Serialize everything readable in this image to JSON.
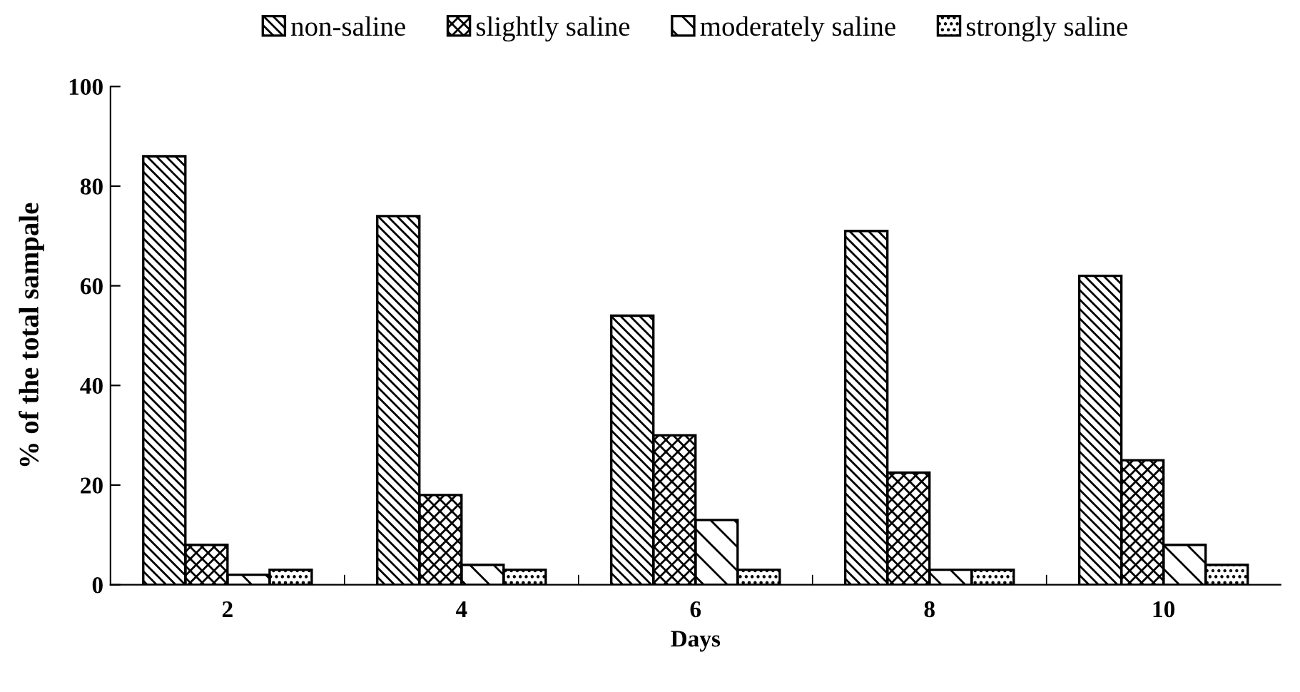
{
  "chart_data": {
    "type": "bar",
    "xlabel": "Days",
    "ylabel": "% of the total sampale",
    "categories": [
      "2",
      "4",
      "6",
      "8",
      "10"
    ],
    "series": [
      {
        "name": "non-saline",
        "color": "#000000",
        "values": [
          86,
          74,
          54,
          71,
          62
        ]
      },
      {
        "name": "slightly saline",
        "color": "#000000",
        "values": [
          8,
          18,
          30,
          22.5,
          25
        ]
      },
      {
        "name": "moderately saline",
        "color": "#000000",
        "values": [
          2,
          4,
          13,
          3,
          8
        ]
      },
      {
        "name": "strongly saline",
        "color": "#000000",
        "values": [
          3,
          3,
          3,
          3,
          4
        ]
      }
    ],
    "ylim": [
      0,
      100
    ],
    "yticks": [
      0,
      20,
      40,
      60,
      80,
      100
    ],
    "legend": "top",
    "grid": false
  }
}
